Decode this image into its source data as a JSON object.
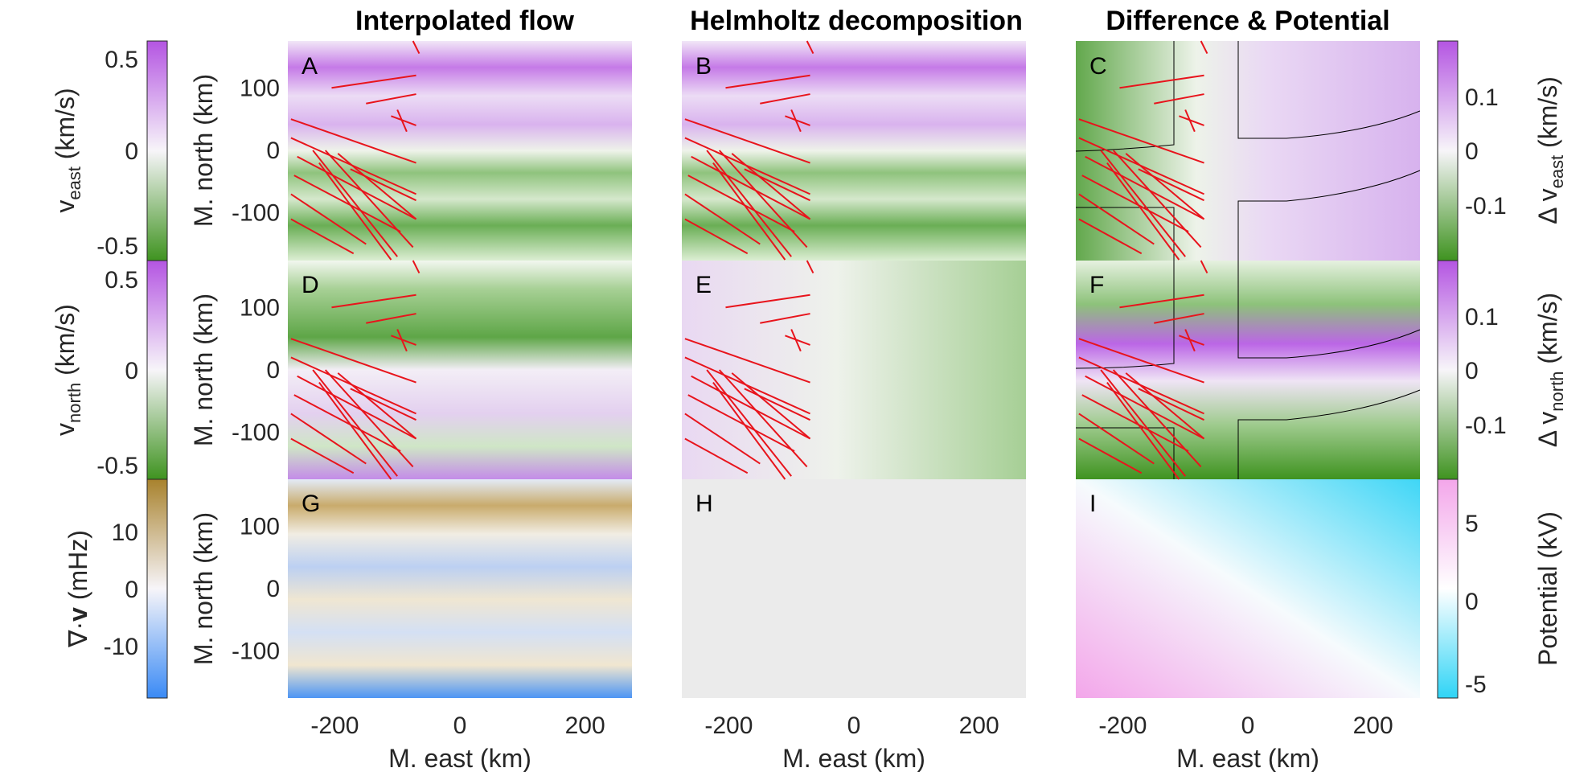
{
  "figure": {
    "column_titles": [
      "Interpolated flow",
      "Helmholtz decomposition",
      "Difference & Potential"
    ]
  },
  "colors": {
    "purple": "#b455e2",
    "green": "#3f9320",
    "white": "#f7f5f9",
    "brown": "#a8822d",
    "blue": "#3a8af5",
    "pink": "#f3a6ea",
    "cyan": "#2fd4f6",
    "red": "#e8141c",
    "gray_panel": "#ebebeb"
  },
  "chart_data": [
    {
      "type": "heatmap",
      "panels": [
        "A",
        "B",
        "C",
        "D",
        "E",
        "F",
        "G",
        "H",
        "I"
      ],
      "xlabel": "M. east (km)",
      "ylabel": "M. north (km)",
      "xticks": [
        -200,
        0,
        200
      ],
      "yticks": [
        100,
        0,
        -100
      ],
      "xlim": [
        -275,
        275
      ],
      "ylim": [
        -175,
        175
      ]
    }
  ],
  "colorbars": {
    "veast": {
      "label_main": "v",
      "label_sub": "east",
      "label_unit": " (km/s)",
      "ticks": [
        "0.5",
        "0",
        "-0.5"
      ],
      "range": [
        -0.6,
        0.6
      ]
    },
    "vnorth": {
      "label_main": "v",
      "label_sub": "north",
      "label_unit": " (km/s)",
      "ticks": [
        "0.5",
        "0",
        "-0.5"
      ],
      "range": [
        -0.6,
        0.6
      ]
    },
    "div": {
      "label_pre": "∇·",
      "label_bold": "v",
      "label_unit": " (mHz)",
      "ticks": [
        "10",
        "0",
        "-10"
      ],
      "range": [
        -20,
        20
      ]
    },
    "dveast": {
      "label_main": "Δ v",
      "label_sub": "east",
      "label_unit": " (km/s)",
      "ticks": [
        "0.1",
        "0",
        "-0.1"
      ],
      "range": [
        -0.2,
        0.2
      ]
    },
    "dvnorth": {
      "label_main": "Δ v",
      "label_sub": "north",
      "label_unit": " (km/s)",
      "ticks": [
        "0.1",
        "0",
        "-0.1"
      ],
      "range": [
        -0.2,
        0.2
      ]
    },
    "potential": {
      "label": "Potential (kV)",
      "ticks": [
        "5",
        "0",
        "-5"
      ],
      "range": [
        -7,
        7
      ]
    }
  }
}
